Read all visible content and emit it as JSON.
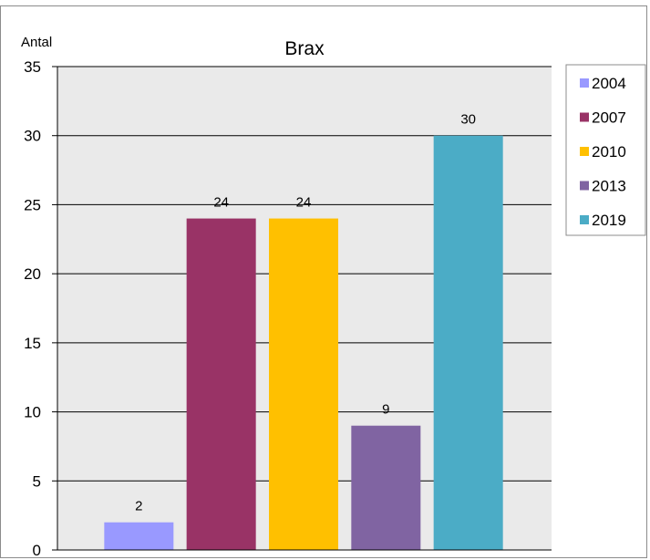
{
  "chart_data": {
    "type": "bar",
    "title": "Brax",
    "ylabel": "Antal",
    "xlabel": "",
    "categories": [
      "2004",
      "2007",
      "2010",
      "2013",
      "2019"
    ],
    "values": [
      2,
      24,
      24,
      9,
      30
    ],
    "colors": [
      "#9999ff",
      "#993366",
      "#ffc000",
      "#8064a2",
      "#4bacc6"
    ],
    "ylim": [
      0,
      35
    ],
    "yticks": [
      0,
      5,
      10,
      15,
      20,
      25,
      30,
      35
    ],
    "grid": true,
    "plot_background": "#eaeaea",
    "legend_position": "right",
    "legend": [
      "2004",
      "2007",
      "2010",
      "2013",
      "2019"
    ]
  }
}
